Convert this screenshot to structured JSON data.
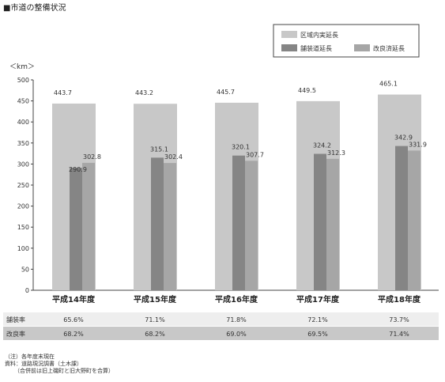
{
  "chart_data": {
    "type": "bar",
    "title": "■市道の整備状況",
    "yunit": "＜km＞",
    "ylim": [
      0,
      500
    ],
    "yticks": [
      0,
      50,
      100,
      150,
      200,
      250,
      300,
      350,
      400,
      450,
      500
    ],
    "grid": false,
    "legend_position": "top-right",
    "categories": [
      "平成14年度",
      "平成15年度",
      "平成16年度",
      "平成17年度",
      "平成18年度"
    ],
    "series": [
      {
        "name": "区域内実延長",
        "color": "#c8c8c8",
        "values": [
          443.7,
          443.2,
          445.7,
          449.5,
          465.1
        ],
        "labels": [
          "443.7",
          "443.2",
          "445.7",
          "449.5",
          "465.1"
        ]
      },
      {
        "name": "舗装道延長",
        "color": "#858585",
        "values": [
          290.9,
          315.1,
          320.1,
          324.2,
          342.9
        ],
        "labels": [
          "290.9",
          "315.1",
          "320.1",
          "324.2",
          "342.9"
        ]
      },
      {
        "name": "改良済延長",
        "color": "#a6a6a6",
        "values": [
          302.8,
          302.4,
          307.7,
          312.3,
          331.9
        ],
        "labels": [
          "302.8",
          "302.4",
          "307.7",
          "312.3",
          "331.9"
        ]
      }
    ],
    "table": [
      {
        "label": "舗装率",
        "values": [
          "65.6%",
          "71.1%",
          "71.8%",
          "72.1%",
          "73.7%"
        ]
      },
      {
        "label": "改良率",
        "values": [
          "68.2%",
          "68.2%",
          "69.0%",
          "69.5%",
          "71.4%"
        ]
      }
    ]
  },
  "notes": [
    "（注）各年度末現在",
    "資料：道路現況調書（土木課）",
    "（合併前は旧上磯町と旧大野町を合算）"
  ]
}
